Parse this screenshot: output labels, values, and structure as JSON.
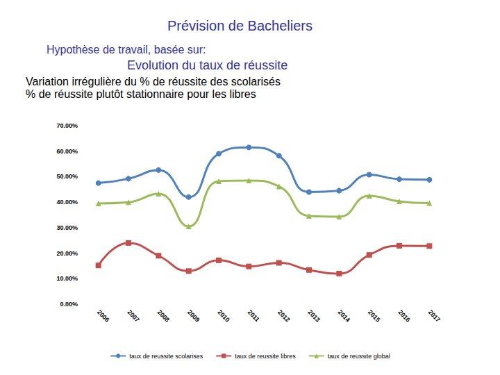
{
  "chart_data": {
    "type": "line",
    "title": "Prévision de Bacheliers",
    "subtitle": "Hypothèse de travail, basée sur:",
    "annotations": [
      "Evolution du taux de réussite",
      "Variation irrégulière du % de réussite des scolarisés",
      "% de réussite plutôt stationnaire pour les libres"
    ],
    "categories": [
      "2006",
      "2007",
      "2008",
      "2009",
      "2010",
      "2011",
      "2012",
      "2013",
      "2014",
      "2015",
      "2016",
      "2017"
    ],
    "series": [
      {
        "name": "taux de reussite scolarises",
        "color": "#4f81bd",
        "marker": "circle",
        "line_style": "solid",
        "values": [
          47.5,
          49.2,
          52.6,
          42.0,
          59.0,
          61.5,
          58.2,
          44.0,
          44.5,
          50.8,
          49.0,
          48.8
        ]
      },
      {
        "name": "taux de reussite libres",
        "color": "#c0504d",
        "marker": "square",
        "line_style": "solid",
        "values": [
          15.2,
          24.0,
          19.0,
          13.0,
          17.2,
          14.8,
          16.2,
          13.4,
          12.0,
          19.3,
          22.9,
          22.8
        ]
      },
      {
        "name": "taux de reussite global",
        "color": "#9bbb59",
        "marker": "triangle",
        "line_style": "solid",
        "values": [
          39.5,
          40.0,
          43.3,
          30.5,
          48.2,
          48.5,
          46.2,
          34.6,
          34.3,
          42.5,
          40.3,
          39.6
        ]
      }
    ],
    "ylim": [
      0,
      70
    ],
    "yticks": [
      {
        "value": 0,
        "label": "0.00%"
      },
      {
        "value": 10,
        "label": "10.00%"
      },
      {
        "value": 20,
        "label": "20.00%"
      },
      {
        "value": 30,
        "label": "30.00%"
      },
      {
        "value": 40,
        "label": "40.00%"
      },
      {
        "value": 50,
        "label": "50.00%"
      },
      {
        "value": 60,
        "label": "60.00%"
      },
      {
        "value": 70,
        "label": "70.00%"
      }
    ],
    "grid": false,
    "legend": "bottom"
  }
}
